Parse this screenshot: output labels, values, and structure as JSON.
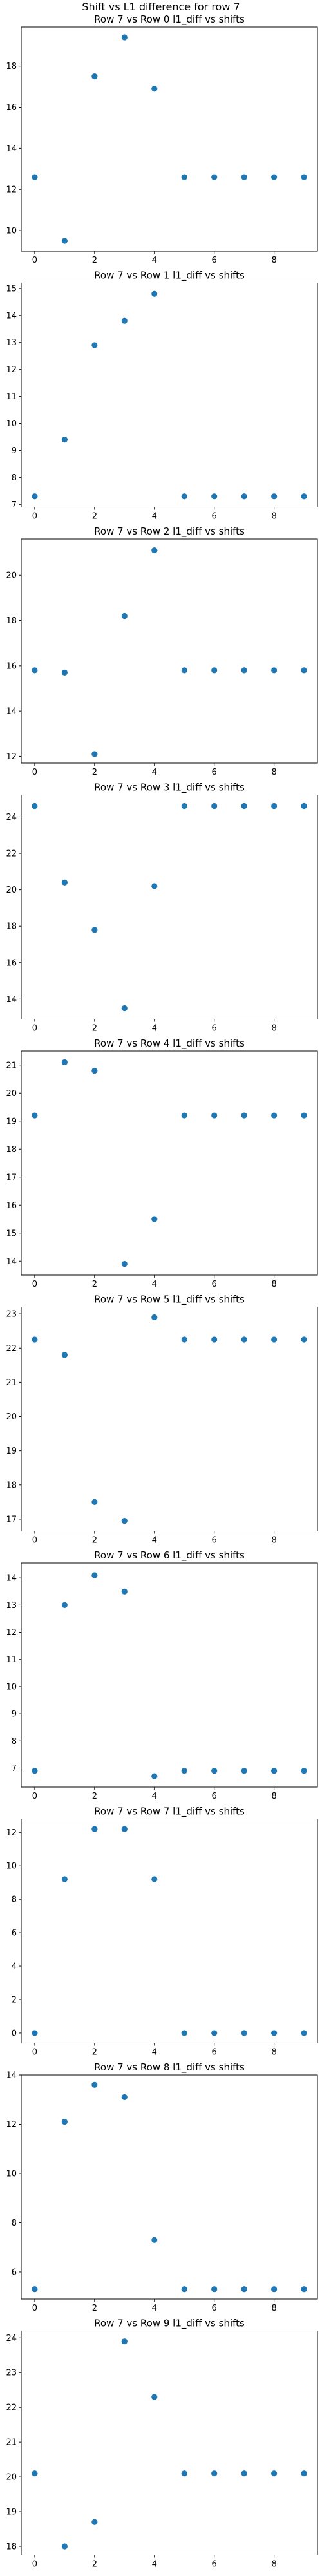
{
  "figure": {
    "suptitle": "Shift vs L1 difference for row 7"
  },
  "style": {
    "marker_color": "#1f77b4",
    "background": "#ffffff"
  },
  "chart_data": [
    {
      "type": "scatter",
      "title": "Row 7 vs Row 0 l1_diff vs shifts",
      "x": [
        0,
        1,
        2,
        3,
        4,
        5,
        6,
        7,
        8,
        9
      ],
      "y": [
        12.6,
        9.5,
        17.5,
        19.4,
        16.9,
        12.6,
        12.6,
        12.6,
        12.6,
        12.6
      ],
      "xlim": [
        -0.45,
        9.45
      ],
      "ylim": [
        9.0,
        19.9
      ],
      "xticks": [
        0,
        2,
        4,
        6,
        8
      ],
      "yticks": [
        10,
        12,
        14,
        16,
        18
      ],
      "grid": false
    },
    {
      "type": "scatter",
      "title": "Row 7 vs Row 1 l1_diff vs shifts",
      "x": [
        0,
        1,
        2,
        3,
        4,
        5,
        6,
        7,
        8,
        9
      ],
      "y": [
        7.3,
        9.4,
        12.9,
        13.8,
        14.8,
        7.3,
        7.3,
        7.3,
        7.3,
        7.3
      ],
      "xlim": [
        -0.45,
        9.45
      ],
      "ylim": [
        6.9,
        15.2
      ],
      "xticks": [
        0,
        2,
        4,
        6,
        8
      ],
      "yticks": [
        7,
        8,
        9,
        10,
        11,
        12,
        13,
        14,
        15
      ],
      "grid": false
    },
    {
      "type": "scatter",
      "title": "Row 7 vs Row 2 l1_diff vs shifts",
      "x": [
        0,
        1,
        2,
        3,
        4,
        5,
        6,
        7,
        8,
        9
      ],
      "y": [
        15.8,
        15.7,
        12.1,
        18.2,
        21.1,
        15.8,
        15.8,
        15.8,
        15.8,
        15.8
      ],
      "xlim": [
        -0.45,
        9.45
      ],
      "ylim": [
        11.7,
        21.6
      ],
      "xticks": [
        0,
        2,
        4,
        6,
        8
      ],
      "yticks": [
        12,
        14,
        16,
        18,
        20
      ],
      "grid": false
    },
    {
      "type": "scatter",
      "title": "Row 7 vs Row 3 l1_diff vs shifts",
      "x": [
        0,
        1,
        2,
        3,
        4,
        5,
        6,
        7,
        8,
        9
      ],
      "y": [
        24.6,
        20.4,
        17.8,
        13.5,
        20.2,
        24.6,
        24.6,
        24.6,
        24.6,
        24.6
      ],
      "xlim": [
        -0.45,
        9.45
      ],
      "ylim": [
        12.9,
        25.2
      ],
      "xticks": [
        0,
        2,
        4,
        6,
        8
      ],
      "yticks": [
        14,
        16,
        18,
        20,
        22,
        24
      ],
      "grid": false
    },
    {
      "type": "scatter",
      "title": "Row 7 vs Row 4 l1_diff vs shifts",
      "x": [
        0,
        1,
        2,
        3,
        4,
        5,
        6,
        7,
        8,
        9
      ],
      "y": [
        19.2,
        21.1,
        20.8,
        13.9,
        15.5,
        19.2,
        19.2,
        19.2,
        19.2,
        19.2
      ],
      "xlim": [
        -0.45,
        9.45
      ],
      "ylim": [
        13.5,
        21.5
      ],
      "xticks": [
        0,
        2,
        4,
        6,
        8
      ],
      "yticks": [
        14,
        15,
        16,
        17,
        18,
        19,
        20,
        21
      ],
      "grid": false
    },
    {
      "type": "scatter",
      "title": "Row 7 vs Row 5 l1_diff vs shifts",
      "x": [
        0,
        1,
        2,
        3,
        4,
        5,
        6,
        7,
        8,
        9
      ],
      "y": [
        22.25,
        21.8,
        17.5,
        16.95,
        22.9,
        22.25,
        22.25,
        22.25,
        22.25,
        22.25
      ],
      "xlim": [
        -0.45,
        9.45
      ],
      "ylim": [
        16.65,
        23.2
      ],
      "xticks": [
        0,
        2,
        4,
        6,
        8
      ],
      "yticks": [
        17,
        18,
        19,
        20,
        21,
        22,
        23
      ],
      "grid": false
    },
    {
      "type": "scatter",
      "title": "Row 7 vs Row 6 l1_diff vs shifts",
      "x": [
        0,
        1,
        2,
        3,
        4,
        5,
        6,
        7,
        8,
        9
      ],
      "y": [
        6.9,
        13.0,
        14.1,
        13.5,
        6.7,
        6.9,
        6.9,
        6.9,
        6.9,
        6.9
      ],
      "xlim": [
        -0.45,
        9.45
      ],
      "ylim": [
        6.3,
        14.55
      ],
      "xticks": [
        0,
        2,
        4,
        6,
        8
      ],
      "yticks": [
        7,
        8,
        9,
        10,
        11,
        12,
        13,
        14
      ],
      "grid": false
    },
    {
      "type": "scatter",
      "title": "Row 7 vs Row 7 l1_diff vs shifts",
      "x": [
        0,
        1,
        2,
        3,
        4,
        5,
        6,
        7,
        8,
        9
      ],
      "y": [
        0,
        9.2,
        12.2,
        12.2,
        9.2,
        0,
        0,
        0,
        0,
        0
      ],
      "xlim": [
        -0.45,
        9.45
      ],
      "ylim": [
        -0.6,
        12.8
      ],
      "xticks": [
        0,
        2,
        4,
        6,
        8
      ],
      "yticks": [
        0,
        2,
        4,
        6,
        8,
        10,
        12
      ],
      "grid": false
    },
    {
      "type": "scatter",
      "title": "Row 7 vs Row 8 l1_diff vs shifts",
      "x": [
        0,
        1,
        2,
        3,
        4,
        5,
        6,
        7,
        8,
        9
      ],
      "y": [
        5.3,
        12.1,
        13.6,
        13.1,
        7.3,
        5.3,
        5.3,
        5.3,
        5.3,
        5.3
      ],
      "xlim": [
        -0.45,
        9.45
      ],
      "ylim": [
        4.9,
        14.0
      ],
      "xticks": [
        0,
        2,
        4,
        6,
        8
      ],
      "yticks": [
        6,
        8,
        10,
        12,
        14
      ],
      "grid": false
    },
    {
      "type": "scatter",
      "title": "Row 7 vs Row 9 l1_diff vs shifts",
      "x": [
        0,
        1,
        2,
        3,
        4,
        5,
        6,
        7,
        8,
        9
      ],
      "y": [
        20.1,
        18.0,
        18.7,
        23.9,
        22.3,
        20.1,
        20.1,
        20.1,
        20.1,
        20.1
      ],
      "xlim": [
        -0.45,
        9.45
      ],
      "ylim": [
        17.75,
        24.2
      ],
      "xticks": [
        0,
        2,
        4,
        6,
        8
      ],
      "yticks": [
        18,
        19,
        20,
        21,
        22,
        23,
        24
      ],
      "grid": false
    }
  ]
}
